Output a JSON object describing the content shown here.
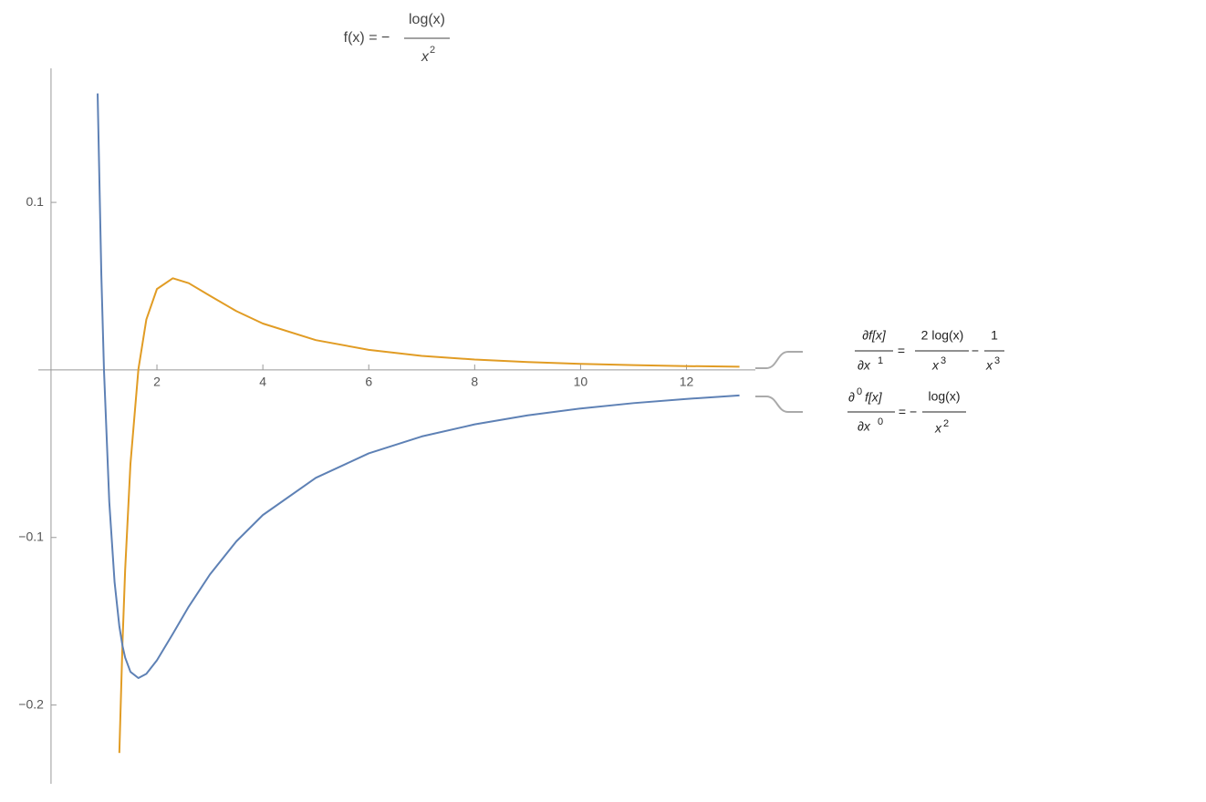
{
  "chart_data": {
    "type": "line",
    "title": {
      "prefix": "f(x) = −",
      "numerator": "log(x)",
      "denominator": "x",
      "exponent": "2"
    },
    "x": [
      0.88,
      0.95,
      1,
      1.1,
      1.2,
      1.29,
      1.35,
      1.4,
      1.5,
      1.65,
      1.8,
      2,
      2.3,
      2.6,
      3,
      3.5,
      4,
      5,
      6,
      7,
      8,
      9,
      10,
      11,
      12,
      13
    ],
    "series": [
      {
        "color": "#e19c24",
        "legend": {
          "lhs_num": "∂f[x]",
          "lhs_den": "∂x",
          "lhs_den_exp": "1",
          "eq": "=",
          "t1_num": "2 log(x)",
          "t1_den": "x",
          "t1_exp": "3",
          "minus": "−",
          "t2_num": "1",
          "t2_den": "x",
          "t2_exp": "3"
        },
        "values": [
          null,
          null,
          null,
          null,
          null,
          -0.2286,
          -0.1625,
          -0.1192,
          -0.056,
          0.0004,
          0.0301,
          0.0483,
          0.0547,
          0.0518,
          0.0443,
          0.0351,
          0.0277,
          0.0178,
          0.012,
          0.0084,
          0.0062,
          0.0047,
          0.0036,
          0.0029,
          0.0023,
          0.0019
        ]
      },
      {
        "color": "#5e81b5",
        "legend": {
          "lhs_num_d": "∂",
          "lhs_num_exp": "0",
          "lhs_num": "f[x]",
          "lhs_den": "∂x",
          "lhs_den_exp": "0",
          "eq": "= −",
          "t1_num": "log(x)",
          "t1_den": "x",
          "t1_exp": "2"
        },
        "values": [
          0.165,
          0.0568,
          0,
          -0.0788,
          -0.1266,
          -0.153,
          -0.1647,
          -0.1717,
          -0.1802,
          -0.1839,
          -0.1814,
          -0.1733,
          -0.1575,
          -0.1413,
          -0.1221,
          -0.1023,
          -0.0866,
          -0.0644,
          -0.0498,
          -0.0397,
          -0.0325,
          -0.0271,
          -0.023,
          -0.0198,
          -0.0173,
          -0.0152
        ]
      }
    ],
    "xlim": [
      -0.24,
      13.3
    ],
    "ylim": [
      -0.247,
      0.18
    ],
    "xticks": [
      2,
      4,
      6,
      8,
      10,
      12
    ],
    "yticks": [
      0.1,
      {
        "value": -0.1,
        "label": "−0.1"
      },
      {
        "value": -0.2,
        "label": "−0.2"
      }
    ]
  }
}
